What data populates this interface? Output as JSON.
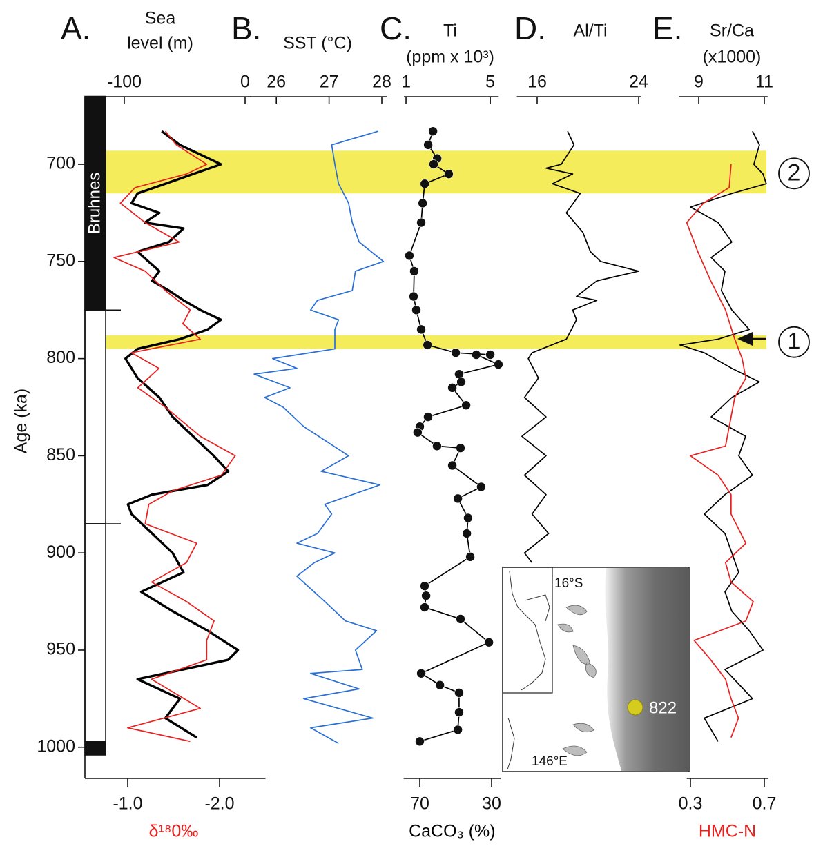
{
  "chart_data": [
    {
      "type": "line",
      "orientation": "vertical",
      "panel": "A.",
      "title": [
        "Sea",
        "level (m)"
      ],
      "xlim": [
        -115,
        5
      ],
      "xticks": [
        -100,
        0
      ],
      "x2lim": [
        -0.5,
        -2.5
      ],
      "x2ticks": [
        {
          "value": -1,
          "label": "-1.0"
        },
        {
          "value": -2,
          "label": "-2.0"
        }
      ],
      "x2label": "δ¹⁸0‰",
      "ylim": [
        665,
        1015
      ],
      "yticks": [
        700,
        750,
        800,
        850,
        900,
        950,
        1000
      ],
      "ylabel": "Age (ka)",
      "highlights": [
        {
          "from": 693,
          "to": 715,
          "label": "2"
        },
        {
          "from": 788,
          "to": 795,
          "label": "1"
        }
      ],
      "polarity": [
        {
          "from": 665,
          "to": 775,
          "normal": true,
          "label": "Bruhnes"
        },
        {
          "from": 775,
          "to": 885,
          "normal": false
        },
        {
          "from": 885,
          "to": 997,
          "normal": false
        },
        {
          "from": 997,
          "to": 1004,
          "normal": true
        }
      ],
      "series": [
        {
          "color": "#000000",
          "x": [
            683,
            690,
            695,
            700,
            705,
            710,
            715,
            720,
            725,
            730,
            733,
            740,
            745,
            750,
            755,
            760,
            765,
            770,
            775,
            780,
            785,
            790,
            795,
            800,
            810,
            820,
            830,
            840,
            850,
            858,
            865,
            870,
            875,
            880,
            890,
            900,
            910,
            920,
            930,
            940,
            950,
            955,
            965,
            975,
            985,
            995
          ],
          "values": [
            -69,
            -54,
            -37,
            -20,
            -43,
            -66,
            -89,
            -94,
            -71,
            -83,
            -51,
            -63,
            -89,
            -80,
            -71,
            -77,
            -63,
            -51,
            -37,
            -20,
            -31,
            -54,
            -89,
            -99,
            -89,
            -71,
            -60,
            -43,
            -26,
            -14,
            -31,
            -77,
            -97,
            -94,
            -77,
            -60,
            -51,
            -86,
            -60,
            -31,
            -6,
            -14,
            -89,
            -54,
            -66,
            -40
          ]
        },
        {
          "color": "#e8201e",
          "axis": "x2",
          "x": [
            683,
            690,
            700,
            705,
            712,
            720,
            730,
            740,
            748,
            755,
            765,
            775,
            782,
            790,
            797,
            805,
            815,
            825,
            840,
            850,
            860,
            868,
            875,
            885,
            895,
            905,
            915,
            925,
            935,
            945,
            955,
            965,
            980,
            990,
            997
          ],
          "values": [
            -1.41,
            -1.53,
            -1.86,
            -1.64,
            -1.08,
            -0.92,
            -1.19,
            -1.56,
            -0.85,
            -1.19,
            -1.41,
            -1.68,
            -1.6,
            -1.79,
            -1.04,
            -1.34,
            -1.11,
            -1.41,
            -1.79,
            -2.17,
            -2.02,
            -1.49,
            -1.23,
            -1.19,
            -1.75,
            -1.64,
            -1.26,
            -1.64,
            -1.94,
            -1.86,
            -1.86,
            -1.26,
            -1.79,
            -1.0,
            -1.68
          ]
        }
      ]
    },
    {
      "type": "line",
      "orientation": "vertical",
      "panel": "B.",
      "title": [
        "SST (°C)"
      ],
      "xlim": [
        25.5,
        28.1
      ],
      "xticks": [
        26,
        27,
        28
      ],
      "ylim": [
        665,
        1015
      ],
      "series": [
        {
          "color": "#2a6fd6",
          "x": [
            683,
            690,
            700,
            710,
            720,
            730,
            740,
            750,
            755,
            765,
            770,
            775,
            780,
            785,
            795,
            800,
            805,
            808,
            815,
            820,
            825,
            835,
            850,
            858,
            865,
            875,
            880,
            890,
            895,
            900,
            905,
            912,
            925,
            935,
            940,
            950,
            960,
            962,
            970,
            975,
            985,
            990,
            998
          ],
          "values": [
            27.93,
            27.05,
            27.11,
            27.18,
            27.37,
            27.44,
            27.57,
            28.03,
            27.5,
            27.44,
            26.78,
            26.65,
            27.18,
            27.11,
            27.11,
            25.93,
            26.39,
            25.58,
            26.26,
            25.78,
            26.13,
            26.52,
            27.37,
            26.85,
            27.96,
            26.92,
            27.05,
            26.78,
            26.39,
            27.11,
            26.72,
            26.39,
            26.92,
            27.31,
            27.9,
            27.5,
            27.63,
            26.65,
            27.57,
            26.52,
            27.83,
            26.65,
            27.18
          ]
        }
      ]
    },
    {
      "type": "line",
      "orientation": "vertical",
      "panel": "C.",
      "title": [
        "Ti",
        "(ppm x 10³)"
      ],
      "xlim": [
        0.9,
        5.4
      ],
      "xticks": [
        1,
        5
      ],
      "x2lim": [
        79,
        25
      ],
      "x2ticks": [
        70,
        30
      ],
      "x2label": "CaCO₃ (%)",
      "ylim": [
        665,
        1015
      ],
      "series": [
        {
          "color": "#000000",
          "markers": true,
          "x": [
            683,
            690,
            697,
            700,
            705,
            710,
            720,
            730,
            747,
            755,
            768,
            775,
            785,
            793,
            797,
            798
          ],
          "values": [
            2.28,
            2.05,
            2.48,
            2.31,
            3.03,
            1.89,
            1.79,
            1.72,
            1.16,
            1.39,
            1.36,
            1.49,
            1.72,
            2.02,
            3.36,
            5.0
          ]
        },
        {
          "color": "#000000",
          "axis": "x2",
          "markers": true,
          "x": [
            798,
            803,
            808,
            812,
            815,
            824,
            830,
            835,
            838,
            845,
            846,
            855,
            866,
            872,
            882,
            890,
            902,
            917,
            922,
            928,
            934,
            946,
            962,
            968,
            972,
            982,
            991,
            997
          ],
          "values": [
            38.5,
            26.2,
            48.1,
            46.9,
            51.9,
            44.2,
            65.4,
            70.0,
            71.2,
            60.4,
            47.3,
            51.9,
            35.8,
            48.8,
            43.1,
            43.8,
            41.9,
            67.3,
            66.5,
            67.3,
            47.3,
            31.5,
            69.2,
            58.8,
            48.1,
            48.1,
            48.8,
            70.0
          ]
        }
      ]
    },
    {
      "type": "line",
      "orientation": "vertical",
      "panel": "D.",
      "title": [
        "Al/Ti"
      ],
      "xlim": [
        14.4,
        24.2
      ],
      "xticks": [
        16,
        24
      ],
      "ylim": [
        665,
        1015
      ],
      "series": [
        {
          "color": "#000000",
          "x": [
            683,
            690,
            700,
            702,
            705,
            710,
            715,
            725,
            735,
            745,
            750,
            755,
            760,
            768,
            770,
            775,
            780,
            790,
            797,
            800,
            810,
            820,
            830,
            840,
            850,
            860,
            870,
            880,
            890,
            900,
            905
          ],
          "values": [
            18.4,
            18.9,
            17.9,
            16.7,
            18.8,
            17.2,
            19.4,
            18.3,
            19.6,
            20.2,
            21.0,
            24.0,
            20.7,
            19.1,
            20.7,
            18.8,
            19.1,
            18.3,
            15.6,
            15.3,
            16.1,
            15.0,
            16.7,
            14.8,
            16.7,
            15.0,
            16.7,
            15.6,
            16.9,
            15.0,
            15.6
          ]
        }
      ]
    },
    {
      "type": "line",
      "orientation": "vertical",
      "panel": "E.",
      "title": [
        "Sr/Ca",
        "(x1000)"
      ],
      "xlim": [
        8.4,
        11.1
      ],
      "xticks": [
        9,
        11
      ],
      "x2lim": [
        0.28,
        0.72
      ],
      "x2ticks": [
        0.3,
        0.7
      ],
      "x2label": "HMC-N",
      "ylim": [
        665,
        1015
      ],
      "series": [
        {
          "color": "#000000",
          "x": [
            683,
            690,
            700,
            705,
            710,
            715,
            722,
            730,
            740,
            748,
            755,
            765,
            775,
            785,
            790,
            793,
            797,
            805,
            812,
            820,
            830,
            840,
            850,
            860,
            870,
            880,
            890,
            900,
            910,
            920,
            930,
            940,
            950,
            960,
            975,
            985,
            997
          ],
          "values": [
            10.64,
            10.85,
            10.68,
            10.96,
            11.06,
            10.01,
            8.75,
            9.59,
            10.01,
            9.38,
            9.8,
            9.69,
            10.01,
            10.54,
            9.59,
            8.43,
            9.17,
            10.01,
            10.85,
            10.01,
            9.38,
            10.43,
            10.22,
            10.64,
            9.8,
            9.17,
            9.8,
            10.01,
            10.22,
            9.8,
            10.01,
            10.54,
            10.96,
            9.8,
            10.64,
            9.17,
            9.59
          ]
        },
        {
          "color": "#e8201e",
          "axis": "x2",
          "x": [
            700,
            712,
            720,
            730,
            745,
            760,
            775,
            790,
            800,
            810,
            820,
            830,
            845,
            850,
            860,
            870,
            880,
            895,
            905,
            915,
            925,
            935,
            945,
            955,
            965,
            975,
            985,
            995
          ],
          "values": [
            0.52,
            0.51,
            0.37,
            0.28,
            0.34,
            0.41,
            0.49,
            0.54,
            0.58,
            0.6,
            0.54,
            0.52,
            0.49,
            0.3,
            0.45,
            0.52,
            0.52,
            0.6,
            0.49,
            0.52,
            0.64,
            0.6,
            0.32,
            0.41,
            0.49,
            0.52,
            0.56,
            0.52
          ]
        }
      ]
    }
  ],
  "inset_map": {
    "lat_label": "16°S",
    "lon_label": "146°E",
    "site_label": "822"
  }
}
